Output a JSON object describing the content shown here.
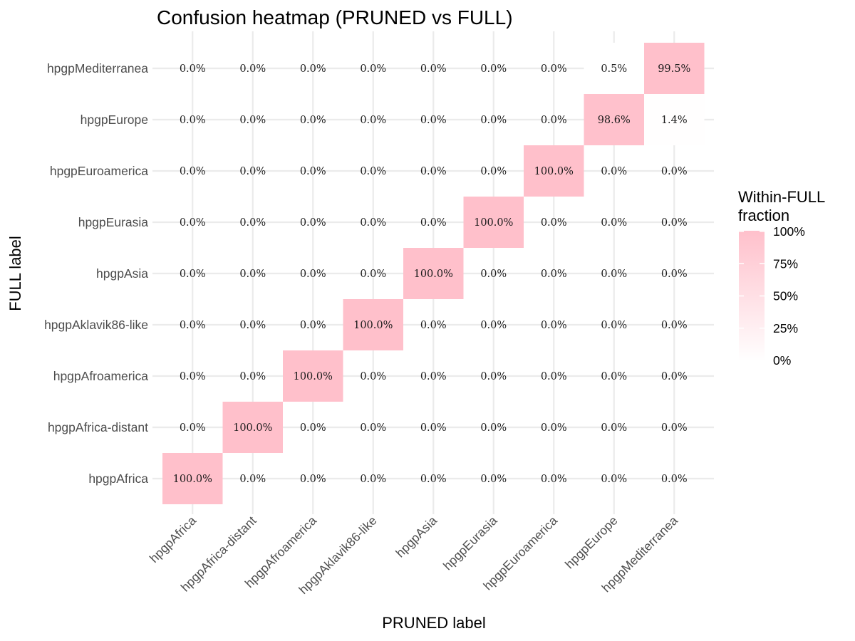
{
  "chart_data": {
    "type": "heatmap",
    "title": "Confusion heatmap (PRUNED vs FULL)",
    "xlabel": "PRUNED label",
    "ylabel": "FULL label",
    "x_categories": [
      "hpgpAfrica",
      "hpgpAfrica-distant",
      "hpgpAfroamerica",
      "hpgpAklavik86-like",
      "hpgpAsia",
      "hpgpEurasia",
      "hpgpEuroamerica",
      "hpgpEurope",
      "hpgpMediterranea"
    ],
    "y_categories": [
      "hpgpAfrica",
      "hpgpAfrica-distant",
      "hpgpAfroamerica",
      "hpgpAklavik86-like",
      "hpgpAsia",
      "hpgpEurasia",
      "hpgpEuroamerica",
      "hpgpEurope",
      "hpgpMediterranea"
    ],
    "values": [
      [
        100.0,
        0.0,
        0.0,
        0.0,
        0.0,
        0.0,
        0.0,
        0.0,
        0.0
      ],
      [
        0.0,
        100.0,
        0.0,
        0.0,
        0.0,
        0.0,
        0.0,
        0.0,
        0.0
      ],
      [
        0.0,
        0.0,
        100.0,
        0.0,
        0.0,
        0.0,
        0.0,
        0.0,
        0.0
      ],
      [
        0.0,
        0.0,
        0.0,
        100.0,
        0.0,
        0.0,
        0.0,
        0.0,
        0.0
      ],
      [
        0.0,
        0.0,
        0.0,
        0.0,
        100.0,
        0.0,
        0.0,
        0.0,
        0.0
      ],
      [
        0.0,
        0.0,
        0.0,
        0.0,
        0.0,
        100.0,
        0.0,
        0.0,
        0.0
      ],
      [
        0.0,
        0.0,
        0.0,
        0.0,
        0.0,
        0.0,
        100.0,
        0.0,
        0.0
      ],
      [
        0.0,
        0.0,
        0.0,
        0.0,
        0.0,
        0.0,
        0.0,
        98.6,
        1.4
      ],
      [
        0.0,
        0.0,
        0.0,
        0.0,
        0.0,
        0.0,
        0.0,
        0.5,
        99.5
      ]
    ],
    "value_format": "percent_1dp",
    "color_scale": {
      "low": "#ffffff",
      "high": "#ffc0cb",
      "domain": [
        0,
        100
      ]
    },
    "legend": {
      "title_lines": [
        "Within-FULL",
        "fraction"
      ],
      "ticks": [
        0,
        25,
        50,
        75,
        100
      ],
      "tick_labels": [
        "0%",
        "25%",
        "50%",
        "75%",
        "100%"
      ],
      "position": "right"
    },
    "grid": true
  }
}
